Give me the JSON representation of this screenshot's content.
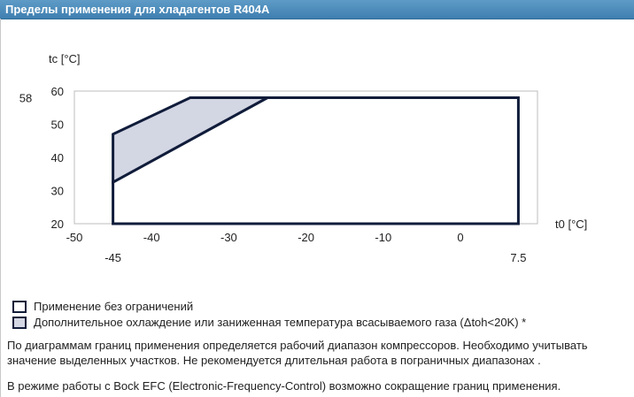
{
  "title": "Пределы применения для хладагентов R404A",
  "chart_data": {
    "type": "area",
    "xlabel": "t0 [°C]",
    "ylabel": "tc [°C]",
    "xlim": [
      -50,
      8
    ],
    "ylim": [
      20,
      60
    ],
    "x_ticks": [
      "-50",
      "-40",
      "-30",
      "-20",
      "-10",
      "0"
    ],
    "y_ticks": [
      "20",
      "30",
      "40",
      "50",
      "60"
    ],
    "x_marks": [
      "-45",
      "7.5"
    ],
    "y_marks": [
      "58"
    ],
    "series": [
      {
        "name": "Применение без ограничений",
        "fill": "#ffffff",
        "points": [
          [
            -45,
            20
          ],
          [
            -45,
            32.5
          ],
          [
            -25,
            58
          ],
          [
            7.5,
            58
          ],
          [
            7.5,
            20
          ]
        ]
      },
      {
        "name": "Дополнительное охлаждение или заниженная температура всасываемого газа (Δtoh<20K) *",
        "fill": "#d3d6e3",
        "points": [
          [
            -45,
            32.5
          ],
          [
            -45,
            47
          ],
          [
            -35,
            58
          ],
          [
            -25,
            58
          ]
        ]
      }
    ]
  },
  "notes": {
    "line1": "По диаграммам границ применения определяется рабочий диапазон компрессоров. Необходимо учитывать",
    "line2": "значение выделенных участков. Не рекомендуется длительная работа в пограничных диапазонах .",
    "line3": "В режиме работы с Bock EFC (Electronic-Frequency-Control) возможно сокращение границ применения."
  },
  "colors": {
    "header": "#4a88b8",
    "outline": "#101c3a",
    "shaded": "#d3d6e3",
    "frame": "#bdbdbd"
  }
}
